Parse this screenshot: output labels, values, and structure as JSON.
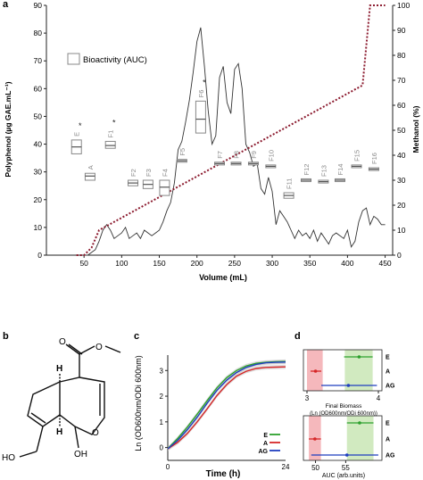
{
  "panels": {
    "a": {
      "letter": "a"
    },
    "b": {
      "letter": "b"
    },
    "c": {
      "letter": "c"
    },
    "d": {
      "letter": "d"
    }
  },
  "chart_data": [
    {
      "type": "line",
      "panel": "a",
      "xlabel": "Volume (mL)",
      "ylabel": "Polyphenol (µg GAE.mL⁻¹)",
      "y2label": "Methanol (%)",
      "xlim": [
        0,
        460
      ],
      "ylim": [
        0,
        90
      ],
      "y2lim": [
        0,
        100
      ],
      "xticks": [
        "50",
        "100",
        "150",
        "200",
        "250",
        "300",
        "350",
        "400",
        "450"
      ],
      "yticks": [
        "0",
        "10",
        "20",
        "30",
        "40",
        "50",
        "60",
        "70",
        "80",
        "90"
      ],
      "y2ticks": [
        "0",
        "10",
        "20",
        "30",
        "40",
        "50",
        "60",
        "70",
        "80",
        "90",
        "100"
      ],
      "legend": "Bioactivity (AUC)",
      "polyphenol_series": {
        "x": [
          40,
          45,
          50,
          55,
          60,
          65,
          70,
          75,
          80,
          85,
          90,
          95,
          100,
          105,
          110,
          115,
          120,
          125,
          130,
          135,
          140,
          145,
          150,
          155,
          160,
          165,
          170,
          175,
          180,
          185,
          190,
          195,
          200,
          205,
          210,
          215,
          220,
          225,
          230,
          235,
          240,
          245,
          250,
          255,
          260,
          265,
          270,
          275,
          280,
          285,
          290,
          295,
          300,
          305,
          310,
          315,
          320,
          325,
          330,
          335,
          340,
          345,
          350,
          355,
          360,
          365,
          370,
          375,
          380,
          385,
          390,
          395,
          400,
          405,
          410,
          415,
          420,
          425,
          430,
          435,
          440,
          445,
          450
        ],
        "y": [
          0,
          0,
          0,
          0,
          1,
          2,
          5,
          9,
          11,
          9,
          6,
          7,
          8,
          10,
          6,
          7,
          8,
          6,
          9,
          8,
          7,
          8,
          9,
          12,
          16,
          19,
          26,
          38,
          41,
          48,
          56,
          66,
          77,
          82,
          68,
          52,
          40,
          43,
          64,
          68,
          55,
          51,
          67,
          69,
          60,
          40,
          37,
          32,
          33,
          24,
          22,
          28,
          23,
          11,
          16,
          14,
          12,
          9,
          6,
          9,
          7,
          8,
          6,
          9,
          5,
          8,
          6,
          4,
          7,
          8,
          7,
          6,
          9,
          3,
          5,
          12,
          16,
          17,
          11,
          14,
          13,
          11,
          11
        ]
      },
      "methanol_series": {
        "x": [
          40,
          50,
          60,
          70,
          420,
          430,
          440,
          450
        ],
        "y": [
          0,
          0,
          3,
          10,
          68,
          100,
          100,
          100
        ]
      },
      "fractions": [
        {
          "label": "E",
          "mark": "*",
          "x": 40,
          "low": 36.5,
          "mid": 39,
          "high": 41.5
        },
        {
          "label": "A",
          "mark": "",
          "x": 58,
          "low": 27,
          "mid": 28.5,
          "high": 29.5
        },
        {
          "label": "F1",
          "mark": "*",
          "x": 85,
          "low": 38.5,
          "mid": 39.5,
          "high": 41
        },
        {
          "label": "F2",
          "mark": "",
          "x": 115,
          "low": 25,
          "mid": 26,
          "high": 27
        },
        {
          "label": "F3",
          "mark": "",
          "x": 135,
          "low": 24,
          "mid": 25.5,
          "high": 27
        },
        {
          "label": "F4",
          "mark": "",
          "x": 157,
          "low": 21.5,
          "mid": 24.5,
          "high": 27
        },
        {
          "label": "F5",
          "mark": "",
          "x": 180,
          "low": 33.5,
          "mid": 34,
          "high": 34.5
        },
        {
          "label": "F6",
          "mark": "*",
          "x": 205,
          "low": 44,
          "mid": 49,
          "high": 55.5
        },
        {
          "label": "F7",
          "mark": "",
          "x": 230,
          "low": 32.5,
          "mid": 33,
          "high": 33.5
        },
        {
          "label": "F8",
          "mark": "",
          "x": 252,
          "low": 32.5,
          "mid": 33,
          "high": 33.5
        },
        {
          "label": "F9",
          "mark": "",
          "x": 275,
          "low": 32.5,
          "mid": 33,
          "high": 33.5
        },
        {
          "label": "F10",
          "mark": "",
          "x": 298,
          "low": 31.5,
          "mid": 32,
          "high": 32.5
        },
        {
          "label": "F11",
          "mark": "",
          "x": 322,
          "low": 20.5,
          "mid": 21.5,
          "high": 22.5
        },
        {
          "label": "F12",
          "mark": "",
          "x": 345,
          "low": 26.5,
          "mid": 27,
          "high": 27.5
        },
        {
          "label": "F13",
          "mark": "",
          "x": 368,
          "low": 26,
          "mid": 26.5,
          "high": 27
        },
        {
          "label": "F14",
          "mark": "",
          "x": 390,
          "low": 26.5,
          "mid": 27,
          "high": 27.5
        },
        {
          "label": "F15",
          "mark": "",
          "x": 412,
          "low": 31.5,
          "mid": 32,
          "high": 32.5
        },
        {
          "label": "F16",
          "mark": "",
          "x": 435,
          "low": 30.5,
          "mid": 31,
          "high": 31.5
        }
      ]
    },
    {
      "type": "line",
      "panel": "c",
      "xlabel": "Time (h)",
      "ylabel": "Ln (OD600nm/ODi 600nm)",
      "xlim": [
        0,
        24
      ],
      "ylim": [
        -0.5,
        3.6
      ],
      "xticks": [
        "0",
        "24"
      ],
      "yticks": [
        "0",
        "1",
        "2",
        "3"
      ],
      "legend": [
        "E",
        "A",
        "AG"
      ],
      "series": [
        {
          "name": "E",
          "color": "#2ca02c",
          "x": [
            0,
            2,
            4,
            6,
            8,
            10,
            12,
            14,
            16,
            18,
            20,
            22,
            24
          ],
          "y": [
            -0.05,
            0.35,
            0.8,
            1.3,
            1.82,
            2.32,
            2.72,
            3.0,
            3.18,
            3.28,
            3.32,
            3.34,
            3.35
          ]
        },
        {
          "name": "A",
          "color": "#d62728",
          "x": [
            0,
            2,
            4,
            6,
            8,
            10,
            12,
            14,
            16,
            18,
            20,
            22,
            24
          ],
          "y": [
            -0.05,
            0.2,
            0.55,
            1.0,
            1.5,
            2.02,
            2.45,
            2.78,
            2.97,
            3.08,
            3.12,
            3.13,
            3.14
          ]
        },
        {
          "name": "AG",
          "color": "#1f3fbf",
          "x": [
            0,
            2,
            4,
            6,
            8,
            10,
            12,
            14,
            16,
            18,
            20,
            22,
            24
          ],
          "y": [
            -0.05,
            0.28,
            0.7,
            1.18,
            1.72,
            2.22,
            2.62,
            2.92,
            3.12,
            3.24,
            3.3,
            3.32,
            3.33
          ]
        }
      ]
    },
    {
      "type": "scatter",
      "panel": "d-top",
      "xlabel": "Final Biomass",
      "xlabel2": "(Ln (OD600nm/ODi 600nm))",
      "xlim": [
        2.95,
        4.05
      ],
      "xticks": [
        "3",
        "4"
      ],
      "categories": [
        "E",
        "A",
        "AG"
      ],
      "points": [
        {
          "name": "E",
          "color": "#2ca02c",
          "value": 3.73,
          "low": 3.52,
          "high": 3.92
        },
        {
          "name": "A",
          "color": "#d62728",
          "value": 3.12,
          "low": 3.05,
          "high": 3.2
        },
        {
          "name": "AG",
          "color": "#1f3fbf",
          "value": 3.58,
          "low": 3.2,
          "high": 3.98
        }
      ]
    },
    {
      "type": "scatter",
      "panel": "d-bottom",
      "xlabel": "AUC (arb.units)",
      "xlim": [
        48,
        61
      ],
      "xticks": [
        "50",
        "55"
      ],
      "categories": [
        "E",
        "A",
        "AG"
      ],
      "points": [
        {
          "name": "E",
          "color": "#2ca02c",
          "value": 57.3,
          "low": 55.2,
          "high": 59.6
        },
        {
          "name": "A",
          "color": "#d62728",
          "value": 49.9,
          "low": 48.9,
          "high": 50.9
        },
        {
          "name": "AG",
          "color": "#1f3fbf",
          "value": 55.2,
          "low": 49.3,
          "high": 60.4
        }
      ]
    }
  ],
  "molecule": {
    "atom_labels": [
      "H",
      "H",
      "O",
      "OH",
      "HO",
      "O",
      "O"
    ]
  }
}
